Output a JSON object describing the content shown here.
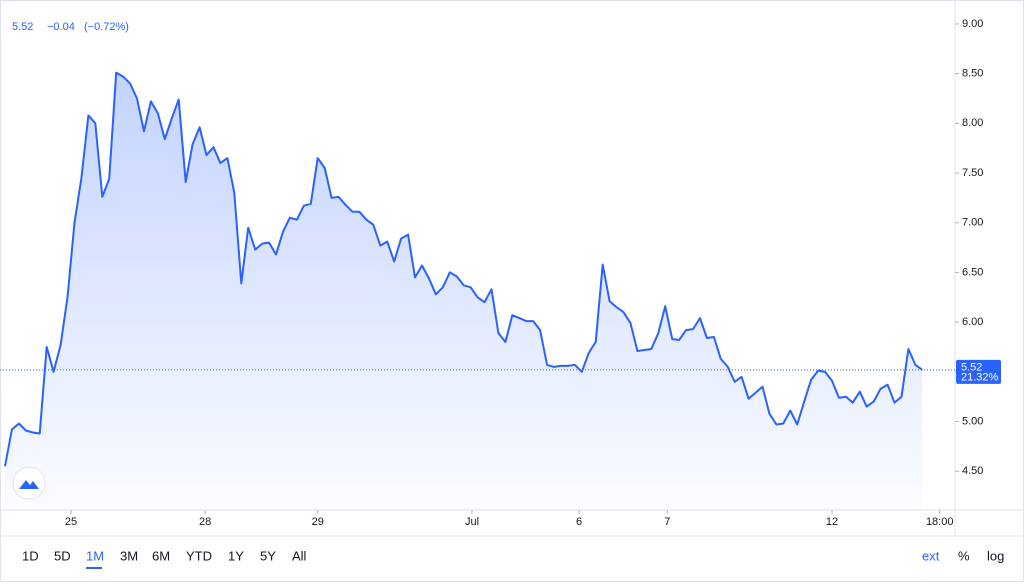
{
  "chart_data": {
    "type": "line",
    "color": "#2962ff",
    "header": {
      "last": "5.52",
      "change": "−0.04",
      "change_pct": "(−0.72%)"
    },
    "values": [
      4.55,
      4.92,
      4.98,
      4.91,
      4.89,
      4.88,
      5.75,
      5.5,
      5.77,
      6.25,
      7.0,
      7.45,
      8.08,
      8.0,
      7.26,
      7.44,
      8.51,
      8.47,
      8.4,
      8.25,
      7.92,
      8.22,
      8.1,
      7.84,
      8.05,
      8.24,
      7.41,
      7.79,
      7.96,
      7.68,
      7.76,
      7.6,
      7.65,
      7.3,
      6.39,
      6.95,
      6.73,
      6.79,
      6.8,
      6.68,
      6.91,
      7.05,
      7.03,
      7.17,
      7.19,
      7.65,
      7.55,
      7.25,
      7.26,
      7.18,
      7.11,
      7.11,
      7.03,
      6.98,
      6.77,
      6.81,
      6.61,
      6.84,
      6.88,
      6.45,
      6.57,
      6.44,
      6.28,
      6.35,
      6.5,
      6.46,
      6.37,
      6.35,
      6.25,
      6.2,
      6.33,
      5.89,
      5.8,
      6.07,
      6.04,
      6.01,
      6.01,
      5.92,
      5.57,
      5.55,
      5.56,
      5.56,
      5.57,
      5.5,
      5.69,
      5.8,
      6.58,
      6.21,
      6.15,
      6.1,
      5.99,
      5.71,
      5.72,
      5.73,
      5.89,
      6.16,
      5.83,
      5.82,
      5.92,
      5.93,
      6.04,
      5.84,
      5.85,
      5.63,
      5.55,
      5.4,
      5.45,
      5.23,
      5.29,
      5.35,
      5.08,
      4.97,
      4.98,
      5.11,
      4.97,
      5.2,
      5.42,
      5.51,
      5.5,
      5.41,
      5.24,
      5.25,
      5.19,
      5.3,
      5.15,
      5.2,
      5.33,
      5.37,
      5.19,
      5.25,
      5.73,
      5.57,
      5.52
    ],
    "last_label": "5.52",
    "last_pct_label": "21.32%",
    "xlim": [
      0,
      136.7
    ],
    "xticks": [
      {
        "value": 9.5,
        "label": "25"
      },
      {
        "value": 28.8,
        "label": "28"
      },
      {
        "value": 45.0,
        "label": "29"
      },
      {
        "value": 67.2,
        "label": "Jul"
      },
      {
        "value": 82.6,
        "label": "6"
      },
      {
        "value": 95.3,
        "label": "7"
      },
      {
        "value": 119.0,
        "label": "12"
      },
      {
        "value": 134.5,
        "label": "18:00"
      }
    ],
    "ylim": [
      4.11,
      9.16
    ],
    "yticks": [
      {
        "value": 4.5,
        "label": "4.50"
      },
      {
        "value": 5,
        "label": "5.00"
      },
      {
        "value": 5.5,
        "label": "5.50"
      },
      {
        "value": 6,
        "label": "6.00"
      },
      {
        "value": 6.5,
        "label": "6.50"
      },
      {
        "value": 7,
        "label": "7.00"
      },
      {
        "value": 7.5,
        "label": "7.50"
      },
      {
        "value": 8,
        "label": "8.00"
      },
      {
        "value": 8.5,
        "label": "8.50"
      },
      {
        "value": 9,
        "label": "9.00"
      }
    ],
    "ranges": [
      "1D",
      "5D",
      "1M",
      "3M",
      "6M",
      "YTD",
      "1Y",
      "5Y",
      "All"
    ],
    "active_range": 2,
    "options": [
      "ext",
      "%",
      "log"
    ]
  }
}
